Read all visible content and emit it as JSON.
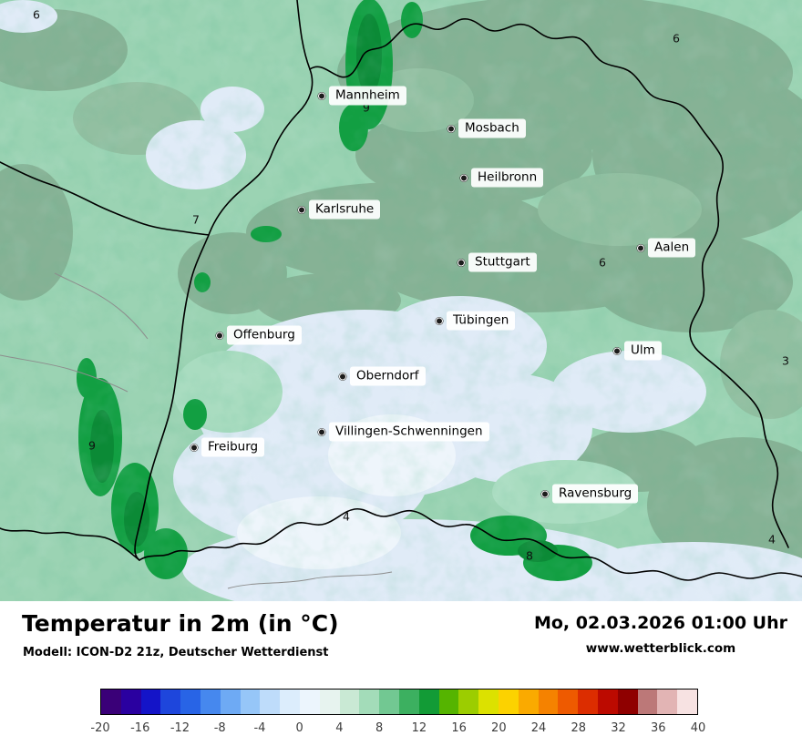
{
  "header": {
    "title": "Temperatur in 2m (in °C)",
    "model": "Modell: ICON-D2 21z, Deutscher Wetterdienst",
    "datetime": "Mo, 02.03.2026 01:00 Uhr",
    "website": "www.wetterblick.com"
  },
  "map": {
    "cities": [
      {
        "name": "Mannheim"
      },
      {
        "name": "Mosbach"
      },
      {
        "name": "Heilbronn"
      },
      {
        "name": "Karlsruhe"
      },
      {
        "name": "Stuttgart"
      },
      {
        "name": "Aalen"
      },
      {
        "name": "Tübingen"
      },
      {
        "name": "Offenburg"
      },
      {
        "name": "Ulm"
      },
      {
        "name": "Oberndorf"
      },
      {
        "name": "Villingen-Schwenningen"
      },
      {
        "name": "Freiburg"
      },
      {
        "name": "Ravensburg"
      }
    ],
    "spot_values": [
      "6",
      "6",
      "9",
      "7",
      "6",
      "9",
      "4",
      "8",
      "4",
      "3"
    ],
    "palette": {
      "base_green": "#9bd3b3",
      "sage_green": "#86b295",
      "pale_blue": "#e0ebf7",
      "dark_green": "#129f42",
      "border": "#000000"
    }
  },
  "colorbar": {
    "unit": "°C",
    "range": [
      -20,
      40
    ],
    "step": 2,
    "ticks": [
      "-20",
      "-16",
      "-12",
      "-8",
      "-4",
      "0",
      "4",
      "8",
      "12",
      "16",
      "20",
      "24",
      "28",
      "32",
      "36",
      "40"
    ],
    "colors": [
      "#3a0078",
      "#2a00a0",
      "#1414c8",
      "#1e46dc",
      "#2864e6",
      "#4688ee",
      "#6eaaf4",
      "#96c6f8",
      "#bedcfa",
      "#dcedfc",
      "#ecf5fd",
      "#e7f3ef",
      "#c9e9d4",
      "#a3dcb9",
      "#72c892",
      "#3cb060",
      "#129b36",
      "#55b400",
      "#9ccd00",
      "#dce100",
      "#fcd200",
      "#faaa00",
      "#f58200",
      "#ee5a00",
      "#dc2d00",
      "#bc0a00",
      "#8f0000",
      "#bc7878",
      "#e2b4b4",
      "#f7e2e2"
    ]
  }
}
